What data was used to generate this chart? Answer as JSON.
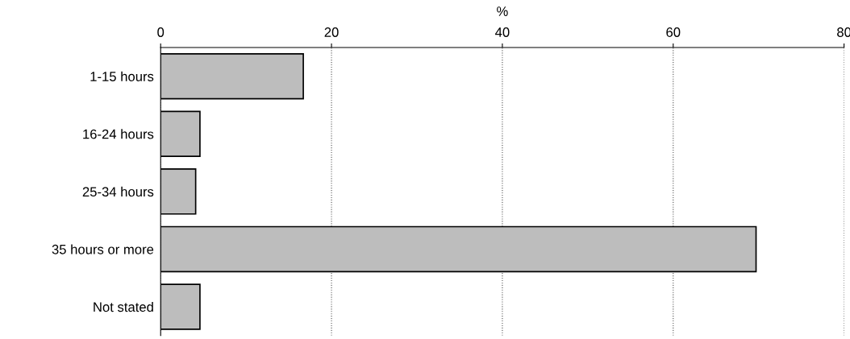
{
  "chart_data": {
    "type": "bar",
    "orientation": "horizontal",
    "xlabel": "%",
    "categories": [
      "1-15 hours",
      "16-24 hours",
      "25-34 hours",
      "35 hours or more",
      "Not stated"
    ],
    "values": [
      16.7,
      4.6,
      4.1,
      69.7,
      4.6
    ],
    "color": "#bdbdbd",
    "xlim": [
      0,
      80
    ],
    "xticks": [
      0,
      20,
      40,
      60,
      80
    ],
    "grid": "x"
  }
}
